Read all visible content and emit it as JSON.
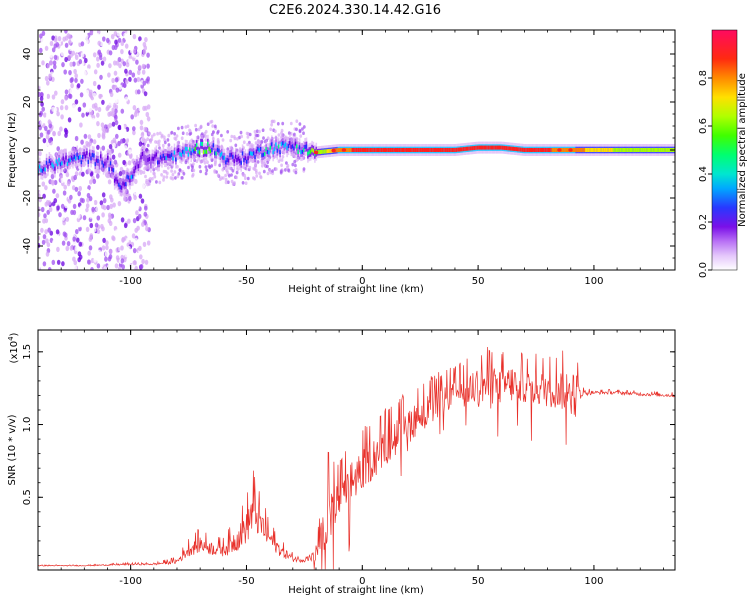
{
  "title": "C2E6.2024.330.14.42.G16",
  "colors": {
    "line": "#e8302a",
    "frame": "#000000"
  },
  "chart_data": [
    {
      "type": "heatmap",
      "title": "C2E6.2024.330.14.42.G16",
      "xlabel": "Height of straight line (km)",
      "ylabel": "Frequency (Hz)",
      "xlim": [
        -140,
        135
      ],
      "ylim": [
        -50,
        50
      ],
      "xticks": [
        -100,
        -50,
        0,
        50,
        100
      ],
      "yticks": [
        -40,
        -20,
        0,
        20,
        40
      ],
      "colorbar": {
        "label": "Normalized spectral amplitude",
        "ticks": [
          "0.0",
          "0.2",
          "0.4",
          "0.6",
          "0.8"
        ],
        "tick_values": [
          0.0,
          0.2,
          0.4,
          0.6,
          0.8
        ],
        "range": [
          0.0,
          1.0
        ],
        "colormap": [
          "#ffffff",
          "#d7a8f5",
          "#a050f0",
          "#6a00e0",
          "#2030ff",
          "#00c8ff",
          "#00ff80",
          "#30ff00",
          "#a8ff00",
          "#ffe000",
          "#ff8000",
          "#ff2020",
          "#ff0060"
        ]
      },
      "ridge": {
        "x": [
          -140,
          -130,
          -120,
          -110,
          -105,
          -100,
          -95,
          -90,
          -80,
          -70,
          -65,
          -60,
          -55,
          -50,
          -45,
          -40,
          -35,
          -30,
          -25,
          -20,
          -10,
          0,
          10,
          20,
          30,
          40,
          50,
          60,
          70,
          80,
          90,
          100,
          110,
          120,
          135
        ],
        "y": [
          -8,
          -5,
          -3,
          -5,
          -15,
          -12,
          -3,
          -4,
          -2,
          1,
          1,
          -3,
          -4,
          -3,
          -1,
          1,
          1,
          2,
          0,
          -1,
          0,
          0,
          0,
          0,
          0,
          0,
          1,
          1,
          0,
          0,
          0,
          0,
          0,
          0,
          0
        ],
        "amplitude": [
          0.4,
          0.35,
          0.3,
          0.25,
          0.3,
          0.3,
          0.2,
          0.25,
          0.35,
          0.5,
          0.45,
          0.35,
          0.3,
          0.3,
          0.35,
          0.4,
          0.35,
          0.35,
          0.45,
          0.6,
          0.85,
          0.9,
          0.92,
          0.92,
          0.92,
          0.92,
          0.92,
          0.92,
          0.9,
          0.88,
          0.85,
          0.75,
          0.7,
          0.7,
          0.7
        ]
      },
      "noise_region": {
        "x_range": [
          -140,
          -92
        ],
        "y_range": [
          -50,
          50
        ]
      }
    },
    {
      "type": "line",
      "title": "",
      "xlabel": "Height of straight line (km)",
      "ylabel": "SNR (10 * v/v)",
      "scale_label": "(x10",
      "scale_exponent": "4",
      "scale_suffix": ")",
      "xlim": [
        -140,
        135
      ],
      "ylim": [
        0,
        1.65
      ],
      "xticks": [
        -100,
        -50,
        0,
        50,
        100
      ],
      "yticks": [
        0.5,
        1.0,
        1.5
      ],
      "ytick_labels": [
        "0.5",
        "1.0",
        "1.5"
      ],
      "series": [
        {
          "name": "SNR",
          "x": [
            -140,
            -120,
            -100,
            -90,
            -80,
            -75,
            -70,
            -65,
            -60,
            -55,
            -50,
            -47,
            -45,
            -40,
            -35,
            -30,
            -25,
            -20,
            -17,
            -16,
            -15,
            -10,
            -5,
            0,
            5,
            10,
            15,
            20,
            25,
            30,
            35,
            40,
            45,
            50,
            55,
            60,
            65,
            70,
            75,
            80,
            85,
            90,
            92,
            95,
            100,
            110,
            120,
            135
          ],
          "base": [
            0.03,
            0.03,
            0.04,
            0.04,
            0.06,
            0.14,
            0.18,
            0.15,
            0.14,
            0.2,
            0.3,
            0.42,
            0.35,
            0.22,
            0.13,
            0.08,
            0.07,
            0.1,
            0.25,
            0.45,
            0.4,
            0.5,
            0.6,
            0.7,
            0.78,
            0.85,
            0.93,
            1.0,
            1.07,
            1.12,
            1.18,
            1.22,
            1.24,
            1.27,
            1.28,
            1.27,
            1.28,
            1.27,
            1.26,
            1.25,
            1.25,
            1.23,
            1.22,
            1.22,
            1.22,
            1.22,
            1.21,
            1.2
          ],
          "amp": [
            0.005,
            0.005,
            0.01,
            0.01,
            0.03,
            0.08,
            0.1,
            0.08,
            0.08,
            0.14,
            0.2,
            0.28,
            0.2,
            0.12,
            0.07,
            0.04,
            0.03,
            0.07,
            0.3,
            0.6,
            0.4,
            0.25,
            0.28,
            0.25,
            0.25,
            0.25,
            0.22,
            0.22,
            0.2,
            0.2,
            0.18,
            0.17,
            0.2,
            0.22,
            0.24,
            0.22,
            0.22,
            0.2,
            0.22,
            0.22,
            0.24,
            0.26,
            0.3,
            0.04,
            0.02,
            0.02,
            0.02,
            0.02
          ]
        }
      ]
    }
  ]
}
